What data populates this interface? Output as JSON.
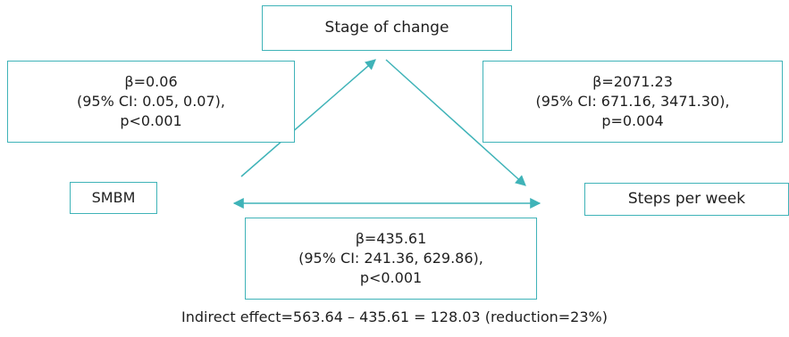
{
  "diagram": {
    "accent_color": "#3fb3b8",
    "nodes": {
      "mediator": "Stage of change",
      "predictor": "SMBM",
      "outcome": "Steps per week"
    },
    "paths": {
      "a": {
        "beta": "β=0.06",
        "ci": "(95% CI: 0.05, 0.07),",
        "p": "p<0.001"
      },
      "b": {
        "beta": "β=2071.23",
        "ci": "(95% CI: 671.16, 3471.30),",
        "p": "p=0.004"
      },
      "c_prime": {
        "beta": "β=435.61",
        "ci": "(95% CI: 241.36, 629.86),",
        "p": "p<0.001"
      }
    },
    "footnote": "Indirect effect=563.64 – 435.61 = 128.03 (reduction=23%)"
  }
}
